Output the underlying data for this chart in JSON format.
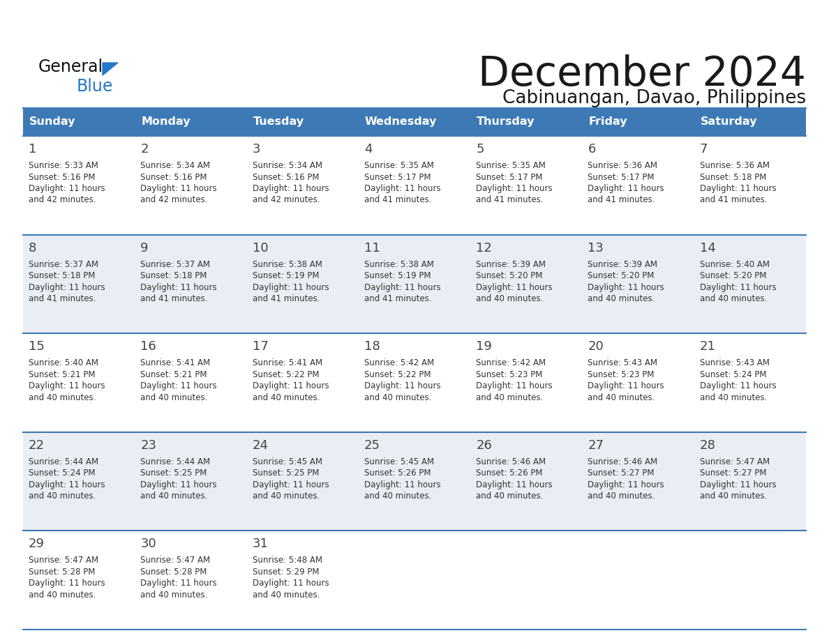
{
  "title": "December 2024",
  "subtitle": "Cabinuangan, Davao, Philippines",
  "header_bg_color": "#3d7ab5",
  "header_text_color": "#FFFFFF",
  "weekdays": [
    "Sunday",
    "Monday",
    "Tuesday",
    "Wednesday",
    "Thursday",
    "Friday",
    "Saturday"
  ],
  "days": [
    {
      "day": 1,
      "col": 0,
      "row": 0,
      "sunrise": "5:33 AM",
      "sunset": "5:16 PM",
      "daylight_hrs": "11",
      "daylight_min": "42"
    },
    {
      "day": 2,
      "col": 1,
      "row": 0,
      "sunrise": "5:34 AM",
      "sunset": "5:16 PM",
      "daylight_hrs": "11",
      "daylight_min": "42"
    },
    {
      "day": 3,
      "col": 2,
      "row": 0,
      "sunrise": "5:34 AM",
      "sunset": "5:16 PM",
      "daylight_hrs": "11",
      "daylight_min": "42"
    },
    {
      "day": 4,
      "col": 3,
      "row": 0,
      "sunrise": "5:35 AM",
      "sunset": "5:17 PM",
      "daylight_hrs": "11",
      "daylight_min": "41"
    },
    {
      "day": 5,
      "col": 4,
      "row": 0,
      "sunrise": "5:35 AM",
      "sunset": "5:17 PM",
      "daylight_hrs": "11",
      "daylight_min": "41"
    },
    {
      "day": 6,
      "col": 5,
      "row": 0,
      "sunrise": "5:36 AM",
      "sunset": "5:17 PM",
      "daylight_hrs": "11",
      "daylight_min": "41"
    },
    {
      "day": 7,
      "col": 6,
      "row": 0,
      "sunrise": "5:36 AM",
      "sunset": "5:18 PM",
      "daylight_hrs": "11",
      "daylight_min": "41"
    },
    {
      "day": 8,
      "col": 0,
      "row": 1,
      "sunrise": "5:37 AM",
      "sunset": "5:18 PM",
      "daylight_hrs": "11",
      "daylight_min": "41"
    },
    {
      "day": 9,
      "col": 1,
      "row": 1,
      "sunrise": "5:37 AM",
      "sunset": "5:18 PM",
      "daylight_hrs": "11",
      "daylight_min": "41"
    },
    {
      "day": 10,
      "col": 2,
      "row": 1,
      "sunrise": "5:38 AM",
      "sunset": "5:19 PM",
      "daylight_hrs": "11",
      "daylight_min": "41"
    },
    {
      "day": 11,
      "col": 3,
      "row": 1,
      "sunrise": "5:38 AM",
      "sunset": "5:19 PM",
      "daylight_hrs": "11",
      "daylight_min": "41"
    },
    {
      "day": 12,
      "col": 4,
      "row": 1,
      "sunrise": "5:39 AM",
      "sunset": "5:20 PM",
      "daylight_hrs": "11",
      "daylight_min": "40"
    },
    {
      "day": 13,
      "col": 5,
      "row": 1,
      "sunrise": "5:39 AM",
      "sunset": "5:20 PM",
      "daylight_hrs": "11",
      "daylight_min": "40"
    },
    {
      "day": 14,
      "col": 6,
      "row": 1,
      "sunrise": "5:40 AM",
      "sunset": "5:20 PM",
      "daylight_hrs": "11",
      "daylight_min": "40"
    },
    {
      "day": 15,
      "col": 0,
      "row": 2,
      "sunrise": "5:40 AM",
      "sunset": "5:21 PM",
      "daylight_hrs": "11",
      "daylight_min": "40"
    },
    {
      "day": 16,
      "col": 1,
      "row": 2,
      "sunrise": "5:41 AM",
      "sunset": "5:21 PM",
      "daylight_hrs": "11",
      "daylight_min": "40"
    },
    {
      "day": 17,
      "col": 2,
      "row": 2,
      "sunrise": "5:41 AM",
      "sunset": "5:22 PM",
      "daylight_hrs": "11",
      "daylight_min": "40"
    },
    {
      "day": 18,
      "col": 3,
      "row": 2,
      "sunrise": "5:42 AM",
      "sunset": "5:22 PM",
      "daylight_hrs": "11",
      "daylight_min": "40"
    },
    {
      "day": 19,
      "col": 4,
      "row": 2,
      "sunrise": "5:42 AM",
      "sunset": "5:23 PM",
      "daylight_hrs": "11",
      "daylight_min": "40"
    },
    {
      "day": 20,
      "col": 5,
      "row": 2,
      "sunrise": "5:43 AM",
      "sunset": "5:23 PM",
      "daylight_hrs": "11",
      "daylight_min": "40"
    },
    {
      "day": 21,
      "col": 6,
      "row": 2,
      "sunrise": "5:43 AM",
      "sunset": "5:24 PM",
      "daylight_hrs": "11",
      "daylight_min": "40"
    },
    {
      "day": 22,
      "col": 0,
      "row": 3,
      "sunrise": "5:44 AM",
      "sunset": "5:24 PM",
      "daylight_hrs": "11",
      "daylight_min": "40"
    },
    {
      "day": 23,
      "col": 1,
      "row": 3,
      "sunrise": "5:44 AM",
      "sunset": "5:25 PM",
      "daylight_hrs": "11",
      "daylight_min": "40"
    },
    {
      "day": 24,
      "col": 2,
      "row": 3,
      "sunrise": "5:45 AM",
      "sunset": "5:25 PM",
      "daylight_hrs": "11",
      "daylight_min": "40"
    },
    {
      "day": 25,
      "col": 3,
      "row": 3,
      "sunrise": "5:45 AM",
      "sunset": "5:26 PM",
      "daylight_hrs": "11",
      "daylight_min": "40"
    },
    {
      "day": 26,
      "col": 4,
      "row": 3,
      "sunrise": "5:46 AM",
      "sunset": "5:26 PM",
      "daylight_hrs": "11",
      "daylight_min": "40"
    },
    {
      "day": 27,
      "col": 5,
      "row": 3,
      "sunrise": "5:46 AM",
      "sunset": "5:27 PM",
      "daylight_hrs": "11",
      "daylight_min": "40"
    },
    {
      "day": 28,
      "col": 6,
      "row": 3,
      "sunrise": "5:47 AM",
      "sunset": "5:27 PM",
      "daylight_hrs": "11",
      "daylight_min": "40"
    },
    {
      "day": 29,
      "col": 0,
      "row": 4,
      "sunrise": "5:47 AM",
      "sunset": "5:28 PM",
      "daylight_hrs": "11",
      "daylight_min": "40"
    },
    {
      "day": 30,
      "col": 1,
      "row": 4,
      "sunrise": "5:47 AM",
      "sunset": "5:28 PM",
      "daylight_hrs": "11",
      "daylight_min": "40"
    },
    {
      "day": 31,
      "col": 2,
      "row": 4,
      "sunrise": "5:48 AM",
      "sunset": "5:29 PM",
      "daylight_hrs": "11",
      "daylight_min": "40"
    }
  ],
  "bg_color": "#FFFFFF",
  "cell_bg_even": "#FFFFFF",
  "cell_bg_odd": "#E8EEF4",
  "border_color": "#3d7ab5",
  "text_color": "#333333",
  "day_number_color": "#444444"
}
